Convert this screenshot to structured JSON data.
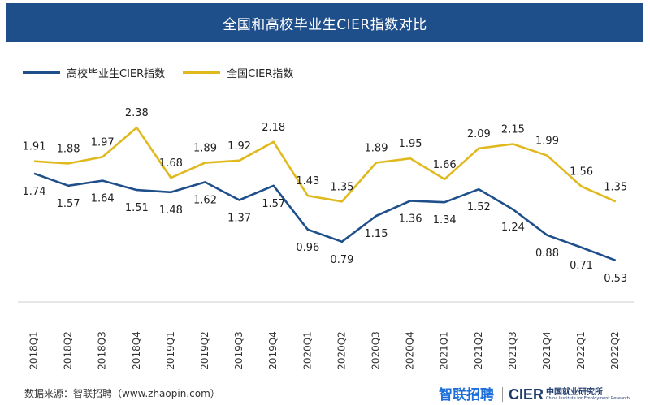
{
  "header": {
    "title": "全国和高校毕业生CIER指数对比"
  },
  "colors": {
    "series1": "#1f4f8a",
    "series2": "#e0b91e",
    "title_bg": "#1f4f8a"
  },
  "footer": {
    "source": "数据来源：智联招聘（www.zhaopin.com）",
    "logo_zhilian": "智联招聘",
    "logo_cier": "CIER",
    "logo_cier_cn": "中国就业研究所",
    "logo_cier_en": "China Institute for Employment Research"
  },
  "chart_data": {
    "type": "line",
    "title": "全国和高校毕业生CIER指数对比",
    "categories": [
      "2018Q1",
      "2018Q2",
      "2018Q3",
      "2018Q4",
      "2019Q1",
      "2019Q2",
      "2019Q3",
      "2019Q4",
      "2020Q1",
      "2020Q2",
      "2020Q3",
      "2020Q4",
      "2021Q1",
      "2021Q2",
      "2021Q3",
      "2021Q4",
      "2022Q1",
      "2022Q2"
    ],
    "series": [
      {
        "name": "高校毕业生CIER指数",
        "values": [
          1.74,
          1.57,
          1.64,
          1.51,
          1.48,
          1.62,
          1.37,
          1.57,
          0.96,
          0.79,
          1.15,
          1.36,
          1.34,
          1.52,
          1.24,
          0.88,
          0.71,
          0.53
        ]
      },
      {
        "name": "全国CIER指数",
        "values": [
          1.91,
          1.88,
          1.97,
          2.38,
          1.68,
          1.89,
          1.92,
          2.18,
          1.43,
          1.35,
          1.89,
          1.95,
          1.66,
          2.09,
          2.15,
          1.99,
          1.56,
          1.35
        ]
      }
    ],
    "ylim": [
      0.2,
      2.8
    ],
    "grid": false,
    "legend": "top-left"
  }
}
